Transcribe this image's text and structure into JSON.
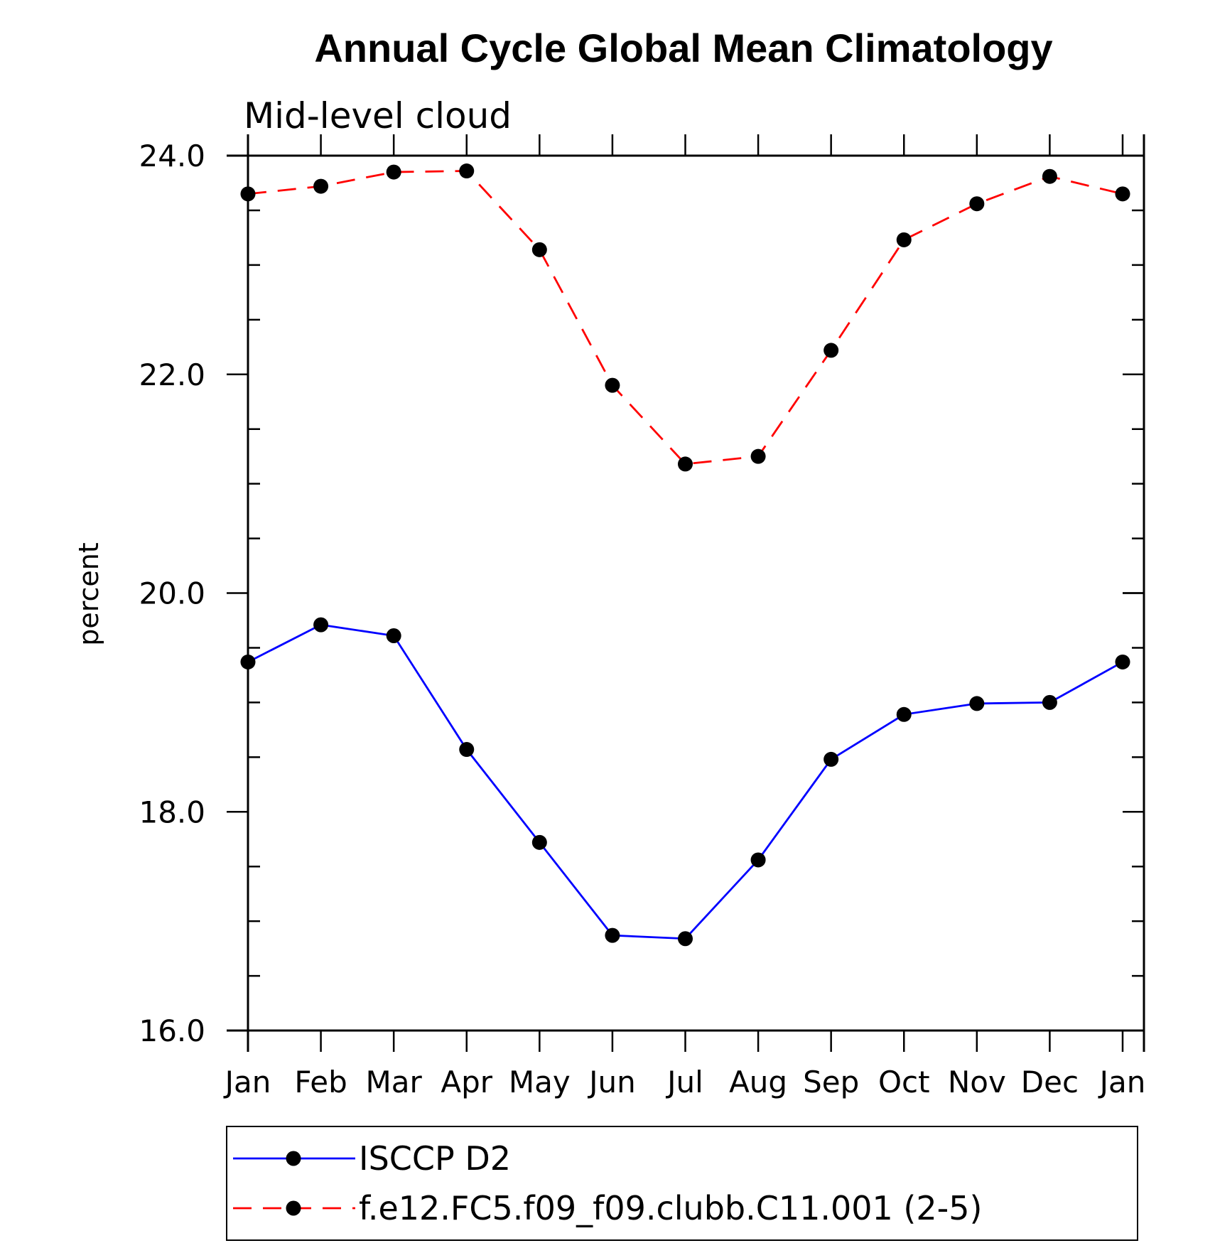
{
  "chart_data": {
    "type": "line",
    "title": "Annual Cycle Global Mean Climatology",
    "subtitle": "Mid-level cloud",
    "xlabel": "",
    "ylabel": "percent",
    "categories": [
      "Jan",
      "Feb",
      "Mar",
      "Apr",
      "May",
      "Jun",
      "Jul",
      "Aug",
      "Sep",
      "Oct",
      "Nov",
      "Dec",
      "Jan"
    ],
    "ylim": [
      16.0,
      24.0
    ],
    "yticks": [
      "16.0",
      "18.0",
      "20.0",
      "22.0",
      "24.0"
    ],
    "grid": false,
    "legend_position": "bottom",
    "series": [
      {
        "name": "ISCCP D2",
        "color": "#0000ff",
        "line_style": "solid",
        "marker": "filled-circle",
        "values": [
          19.37,
          19.71,
          19.61,
          18.57,
          17.72,
          16.87,
          16.84,
          17.56,
          18.48,
          18.89,
          18.99,
          19.0,
          19.37
        ]
      },
      {
        "name": "f.e12.FC5.f09_f09.clubb.C11.001 (2-5)",
        "color": "#ff0000",
        "line_style": "dashed",
        "marker": "filled-circle",
        "values": [
          23.65,
          23.72,
          23.85,
          23.86,
          23.14,
          21.9,
          21.18,
          21.25,
          22.22,
          23.23,
          23.56,
          23.81,
          23.65
        ]
      }
    ]
  }
}
